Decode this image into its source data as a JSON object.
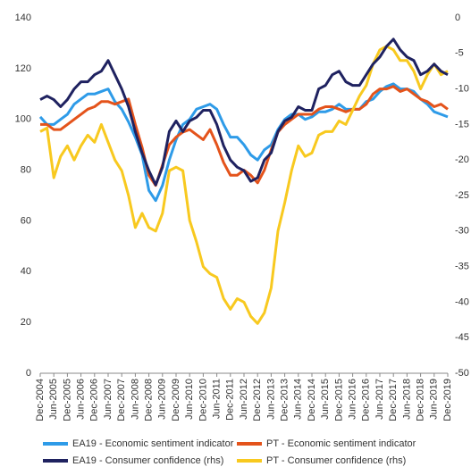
{
  "chart_data": {
    "type": "line",
    "categories": [
      "Dec-2004",
      null,
      "Jun-2005",
      null,
      "Dec-2005",
      null,
      "Jun-2006",
      null,
      "Dec-2006",
      null,
      "Jun-2007",
      null,
      "Dec-2007",
      null,
      "Jun-2008",
      null,
      "Dec-2008",
      null,
      "Jun-2009",
      null,
      "Dec-2009",
      null,
      "Jun-2010",
      null,
      "Dec-2010",
      null,
      "Jun-2011",
      null,
      "Dec-2011",
      null,
      "Jun-2012",
      null,
      "Dec-2012",
      null,
      "Jun-2013",
      null,
      "Dec-2013",
      null,
      "Jun-2014",
      null,
      "Dec-2014",
      null,
      "Jun-2015",
      null,
      "Dec-2015",
      null,
      "Jun-2016",
      null,
      "Dec-2016",
      null,
      "Jun-2017",
      null,
      "Dec-2017",
      null,
      "Jun-2018",
      null,
      "Dec-2018",
      null,
      "Jun-2019",
      null,
      "Dec-2019"
    ],
    "ylim": [
      0,
      140
    ],
    "yticks": [
      0,
      20,
      40,
      60,
      80,
      100,
      120,
      140
    ],
    "y2lim": [
      -50,
      0
    ],
    "y2ticks": [
      -50,
      -45,
      -40,
      -35,
      -30,
      -25,
      -20,
      -15,
      -10,
      -5,
      0
    ],
    "grid": false,
    "series": [
      {
        "name": "EA19 - Economic sentiment indicator",
        "color": "#2e9be8",
        "values": [
          101,
          98,
          98,
          100,
          102,
          106,
          108,
          110,
          110,
          111,
          112,
          107,
          104,
          99,
          93,
          86,
          72,
          68,
          74,
          84,
          92,
          98,
          100,
          104,
          105,
          106,
          104,
          98,
          93,
          93,
          90,
          86,
          84,
          88,
          90,
          96,
          100,
          102,
          102,
          100,
          101,
          103,
          103,
          104,
          106,
          104,
          104,
          104,
          107,
          108,
          111,
          113,
          114,
          112,
          112,
          111,
          108,
          106,
          103,
          102,
          101
        ]
      },
      {
        "name": "PT - Economic sentiment indicator",
        "color": "#e4531b",
        "values": [
          98,
          98,
          96,
          96,
          98,
          100,
          102,
          104,
          105,
          107,
          107,
          106,
          107,
          108,
          98,
          89,
          78,
          74,
          82,
          90,
          93,
          95,
          96,
          94,
          92,
          96,
          90,
          83,
          78,
          78,
          80,
          78,
          75,
          80,
          88,
          95,
          98,
          100,
          102,
          102,
          102,
          104,
          105,
          105,
          104,
          103,
          104,
          104,
          106,
          110,
          112,
          112,
          113,
          111,
          112,
          110,
          108,
          107,
          105,
          106,
          104
        ]
      },
      {
        "name": "EA19 - Consumer confidence (rhs)",
        "color": "#1f2260",
        "axis": "y2",
        "values": [
          -11.5,
          -11,
          -11.5,
          -12.5,
          -11.5,
          -10,
          -9,
          -9,
          -8,
          -7.5,
          -6,
          -8,
          -10,
          -12.5,
          -16,
          -19,
          -21.5,
          -23.5,
          -21,
          -16,
          -14.5,
          -16,
          -14.5,
          -14,
          -13,
          -13,
          -15,
          -18,
          -20,
          -21,
          -21.5,
          -23,
          -22.5,
          -20,
          -19,
          -16,
          -14.5,
          -14,
          -12.5,
          -13,
          -13,
          -10,
          -9.5,
          -8,
          -7.5,
          -9,
          -9.5,
          -9.5,
          -8,
          -6.5,
          -5.5,
          -4,
          -3,
          -4.5,
          -5.5,
          -6,
          -8,
          -7.5,
          -6.5,
          -7.5,
          -8
        ]
      },
      {
        "name": "PT - Consumer confidence (rhs)",
        "color": "#f8c91f",
        "axis": "y2",
        "values": [
          -16,
          -15.5,
          -22.5,
          -19.5,
          -18,
          -20,
          -18,
          -16.5,
          -17.5,
          -15,
          -17.5,
          -20,
          -21.5,
          -25,
          -29.5,
          -27.5,
          -29.5,
          -30,
          -27.5,
          -21.5,
          -21,
          -21.5,
          -28.5,
          -31.5,
          -35,
          -36,
          -36.5,
          -39.5,
          -41,
          -39.5,
          -40,
          -42,
          -43,
          -41.5,
          -38,
          -30,
          -26,
          -21.5,
          -18,
          -19.5,
          -19,
          -16.5,
          -16,
          -16,
          -14.5,
          -15,
          -13,
          -11,
          -9.5,
          -6.5,
          -4.5,
          -4,
          -4.5,
          -6,
          -6,
          -7.5,
          -10,
          -8,
          -6.5,
          -8,
          -7.5
        ]
      }
    ]
  }
}
